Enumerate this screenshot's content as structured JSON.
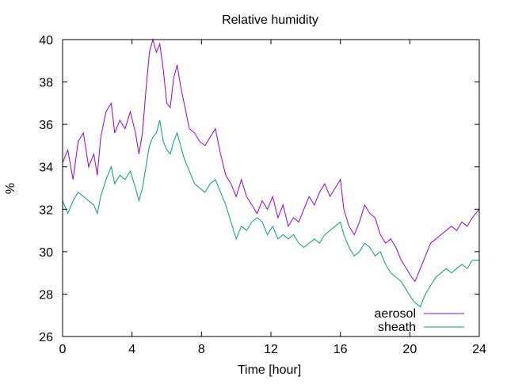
{
  "chart_data": {
    "type": "line",
    "title": "Relative humidity",
    "xlabel": "Time [hour]",
    "ylabel": "%",
    "xlim": [
      0,
      24
    ],
    "ylim": [
      26,
      40
    ],
    "x_ticks": [
      "0",
      "4",
      "8",
      "12",
      "16",
      "20",
      "24"
    ],
    "y_ticks": [
      "26",
      "28",
      "30",
      "32",
      "34",
      "36",
      "38",
      "40"
    ],
    "grid": false,
    "legend_position": "bottom-right",
    "series": [
      {
        "name": "aerosol",
        "color": "#9400d3",
        "points": [
          [
            0.0,
            34.2
          ],
          [
            0.3,
            34.8
          ],
          [
            0.6,
            33.4
          ],
          [
            0.9,
            35.2
          ],
          [
            1.2,
            35.6
          ],
          [
            1.5,
            34.0
          ],
          [
            1.8,
            34.6
          ],
          [
            2.0,
            33.6
          ],
          [
            2.2,
            35.4
          ],
          [
            2.5,
            36.6
          ],
          [
            2.8,
            37.0
          ],
          [
            3.0,
            35.6
          ],
          [
            3.3,
            36.2
          ],
          [
            3.6,
            35.8
          ],
          [
            3.9,
            36.6
          ],
          [
            4.2,
            35.6
          ],
          [
            4.4,
            34.6
          ],
          [
            4.6,
            35.6
          ],
          [
            4.8,
            37.6
          ],
          [
            5.0,
            39.4
          ],
          [
            5.2,
            40.0
          ],
          [
            5.4,
            39.4
          ],
          [
            5.6,
            39.8
          ],
          [
            5.8,
            38.6
          ],
          [
            6.0,
            37.0
          ],
          [
            6.2,
            36.8
          ],
          [
            6.4,
            38.2
          ],
          [
            6.6,
            38.8
          ],
          [
            6.8,
            37.8
          ],
          [
            7.0,
            37.0
          ],
          [
            7.3,
            35.8
          ],
          [
            7.6,
            35.6
          ],
          [
            7.9,
            35.2
          ],
          [
            8.2,
            35.0
          ],
          [
            8.5,
            35.4
          ],
          [
            8.8,
            35.8
          ],
          [
            9.1,
            34.6
          ],
          [
            9.4,
            33.6
          ],
          [
            9.7,
            33.2
          ],
          [
            10.0,
            32.6
          ],
          [
            10.3,
            33.4
          ],
          [
            10.6,
            32.6
          ],
          [
            10.9,
            32.2
          ],
          [
            11.2,
            31.8
          ],
          [
            11.5,
            32.4
          ],
          [
            11.8,
            32.0
          ],
          [
            12.1,
            32.6
          ],
          [
            12.4,
            31.6
          ],
          [
            12.7,
            32.2
          ],
          [
            13.0,
            31.2
          ],
          [
            13.3,
            31.6
          ],
          [
            13.6,
            31.4
          ],
          [
            13.9,
            32.0
          ],
          [
            14.2,
            32.6
          ],
          [
            14.5,
            32.2
          ],
          [
            14.8,
            32.8
          ],
          [
            15.1,
            33.2
          ],
          [
            15.4,
            32.6
          ],
          [
            15.7,
            33.0
          ],
          [
            16.0,
            33.4
          ],
          [
            16.2,
            32.0
          ],
          [
            16.5,
            31.2
          ],
          [
            16.8,
            30.8
          ],
          [
            17.1,
            31.4
          ],
          [
            17.4,
            32.2
          ],
          [
            17.7,
            31.8
          ],
          [
            18.0,
            31.6
          ],
          [
            18.3,
            30.8
          ],
          [
            18.6,
            30.4
          ],
          [
            18.9,
            30.6
          ],
          [
            19.2,
            30.2
          ],
          [
            19.5,
            29.6
          ],
          [
            19.8,
            29.2
          ],
          [
            20.1,
            28.8
          ],
          [
            20.3,
            28.6
          ],
          [
            20.6,
            29.2
          ],
          [
            20.9,
            29.8
          ],
          [
            21.2,
            30.4
          ],
          [
            21.5,
            30.6
          ],
          [
            21.8,
            30.8
          ],
          [
            22.1,
            31.0
          ],
          [
            22.4,
            31.2
          ],
          [
            22.7,
            31.0
          ],
          [
            23.0,
            31.4
          ],
          [
            23.3,
            31.2
          ],
          [
            23.6,
            31.6
          ],
          [
            24.0,
            32.0
          ]
        ]
      },
      {
        "name": "sheath",
        "color": "#009e73",
        "points": [
          [
            0.0,
            32.4
          ],
          [
            0.3,
            31.8
          ],
          [
            0.6,
            32.4
          ],
          [
            0.9,
            32.8
          ],
          [
            1.2,
            32.6
          ],
          [
            1.5,
            32.4
          ],
          [
            1.8,
            32.2
          ],
          [
            2.0,
            31.8
          ],
          [
            2.2,
            32.6
          ],
          [
            2.5,
            33.4
          ],
          [
            2.8,
            34.0
          ],
          [
            3.0,
            33.2
          ],
          [
            3.3,
            33.6
          ],
          [
            3.6,
            33.4
          ],
          [
            3.9,
            33.8
          ],
          [
            4.2,
            33.0
          ],
          [
            4.4,
            32.4
          ],
          [
            4.6,
            33.0
          ],
          [
            4.8,
            34.0
          ],
          [
            5.0,
            35.0
          ],
          [
            5.2,
            35.4
          ],
          [
            5.4,
            35.6
          ],
          [
            5.6,
            36.2
          ],
          [
            5.8,
            35.2
          ],
          [
            6.0,
            34.8
          ],
          [
            6.2,
            34.6
          ],
          [
            6.4,
            35.2
          ],
          [
            6.6,
            35.6
          ],
          [
            6.8,
            35.0
          ],
          [
            7.0,
            34.4
          ],
          [
            7.3,
            33.8
          ],
          [
            7.6,
            33.2
          ],
          [
            7.9,
            33.0
          ],
          [
            8.2,
            32.8
          ],
          [
            8.5,
            33.2
          ],
          [
            8.8,
            33.4
          ],
          [
            9.1,
            32.8
          ],
          [
            9.4,
            32.2
          ],
          [
            9.7,
            31.4
          ],
          [
            10.0,
            30.6
          ],
          [
            10.3,
            31.2
          ],
          [
            10.6,
            31.0
          ],
          [
            10.9,
            31.4
          ],
          [
            11.2,
            31.6
          ],
          [
            11.5,
            31.4
          ],
          [
            11.8,
            30.8
          ],
          [
            12.1,
            31.2
          ],
          [
            12.4,
            30.6
          ],
          [
            12.7,
            30.8
          ],
          [
            13.0,
            30.6
          ],
          [
            13.3,
            30.8
          ],
          [
            13.6,
            30.4
          ],
          [
            13.9,
            30.2
          ],
          [
            14.2,
            30.4
          ],
          [
            14.5,
            30.6
          ],
          [
            14.8,
            30.4
          ],
          [
            15.1,
            30.8
          ],
          [
            15.4,
            31.0
          ],
          [
            15.7,
            31.2
          ],
          [
            16.0,
            31.4
          ],
          [
            16.2,
            30.8
          ],
          [
            16.5,
            30.2
          ],
          [
            16.8,
            29.8
          ],
          [
            17.1,
            30.0
          ],
          [
            17.4,
            30.4
          ],
          [
            17.7,
            30.2
          ],
          [
            18.0,
            29.8
          ],
          [
            18.3,
            30.0
          ],
          [
            18.6,
            29.4
          ],
          [
            18.9,
            29.0
          ],
          [
            19.2,
            28.8
          ],
          [
            19.5,
            28.6
          ],
          [
            19.8,
            28.2
          ],
          [
            20.1,
            27.8
          ],
          [
            20.3,
            27.6
          ],
          [
            20.6,
            27.4
          ],
          [
            20.9,
            28.0
          ],
          [
            21.2,
            28.4
          ],
          [
            21.5,
            28.8
          ],
          [
            21.8,
            29.0
          ],
          [
            22.1,
            29.2
          ],
          [
            22.4,
            29.0
          ],
          [
            22.7,
            29.2
          ],
          [
            23.0,
            29.4
          ],
          [
            23.3,
            29.2
          ],
          [
            23.6,
            29.6
          ],
          [
            24.0,
            29.6
          ]
        ]
      }
    ]
  }
}
